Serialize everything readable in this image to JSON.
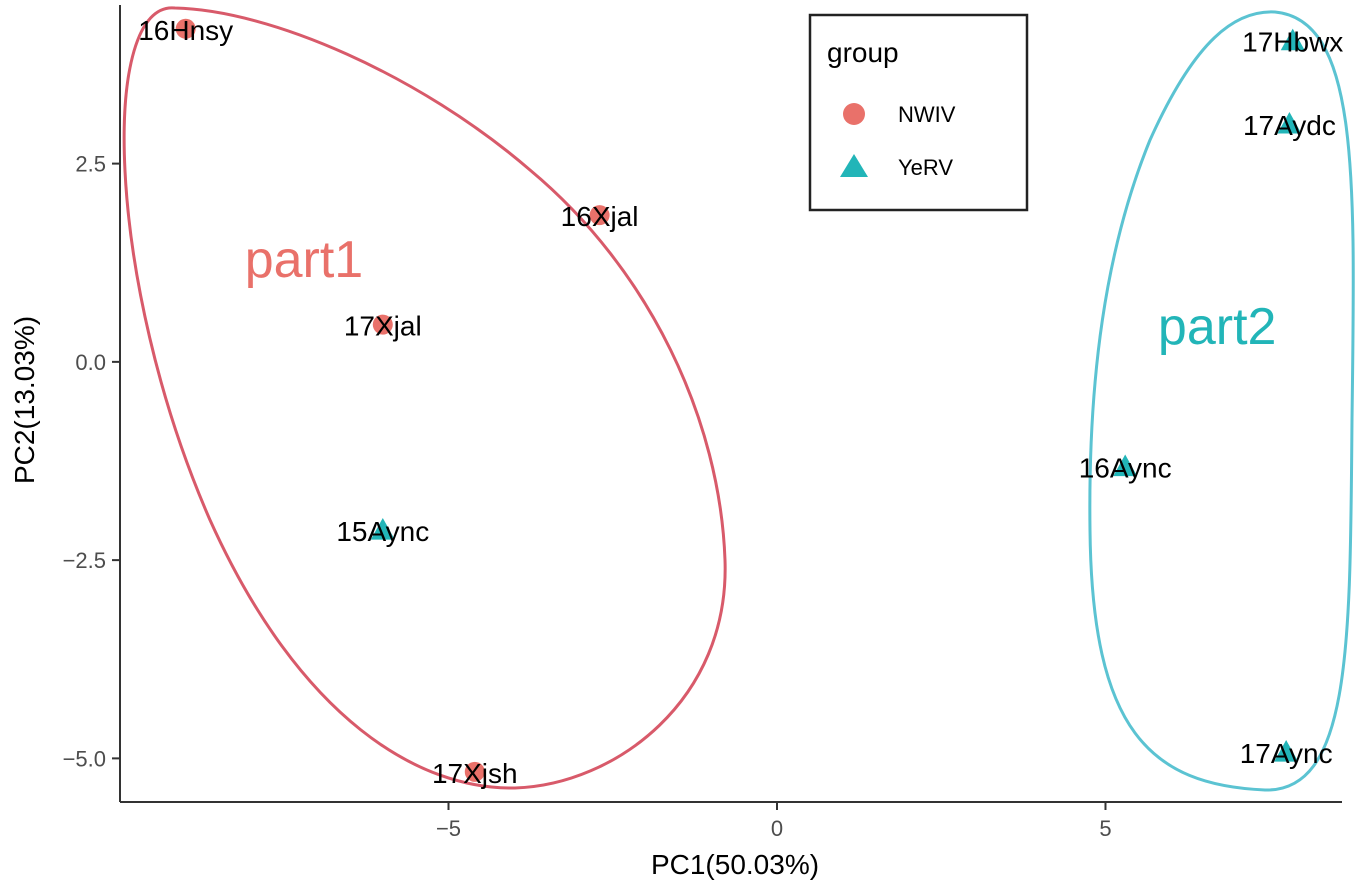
{
  "chart_data": {
    "type": "scatter",
    "xlabel": "PC1(50.03%)",
    "ylabel": "PC2(13.03%)",
    "xlim": [
      -10.0,
      8.6
    ],
    "ylim": [
      -5.55,
      4.5
    ],
    "x_ticks": [
      -5,
      0,
      5
    ],
    "x_tick_labels": [
      "−5",
      "0",
      "5"
    ],
    "y_ticks": [
      -5.0,
      -2.5,
      0.0,
      2.5
    ],
    "y_tick_labels": [
      "−5.0",
      "−2.5",
      "0.0",
      "2.5"
    ],
    "grid": false,
    "legend": {
      "title": "group",
      "position": "top-center",
      "entries": [
        {
          "name": "NWIV",
          "shape": "circle",
          "color": "#E9716A"
        },
        {
          "name": "YeRV",
          "shape": "triangle",
          "color": "#22B5B8"
        }
      ]
    },
    "series": [
      {
        "name": "NWIV",
        "shape": "circle",
        "color": "#E9716A",
        "points": [
          {
            "label": "16Hnsy",
            "x": -9.0,
            "y": 4.2
          },
          {
            "label": "16Xjal",
            "x": -2.7,
            "y": 1.85
          },
          {
            "label": "17Xjal",
            "x": -6.0,
            "y": 0.47
          },
          {
            "label": "17Xjsh",
            "x": -4.6,
            "y": -5.17
          }
        ]
      },
      {
        "name": "YeRV",
        "shape": "triangle",
        "color": "#22B5B8",
        "points": [
          {
            "label": "15Aync",
            "x": -6.0,
            "y": -2.12
          },
          {
            "label": "16Aync",
            "x": 5.3,
            "y": -1.32
          },
          {
            "label": "17Hbwx",
            "x": 7.85,
            "y": 4.05
          },
          {
            "label": "17Aydc",
            "x": 7.8,
            "y": 3.0
          },
          {
            "label": "17Aync",
            "x": 7.75,
            "y": -4.92
          }
        ]
      }
    ],
    "annotations": [
      {
        "text": "part1",
        "x": -7.2,
        "y": 1.3,
        "color": "#E9716A"
      },
      {
        "text": "part2",
        "x": 6.7,
        "y": 0.45,
        "color": "#22B5B8"
      }
    ],
    "ellipses": [
      {
        "group": "part1",
        "color": "#D85A6A"
      },
      {
        "group": "part2",
        "color": "#5BC3D2"
      }
    ]
  }
}
